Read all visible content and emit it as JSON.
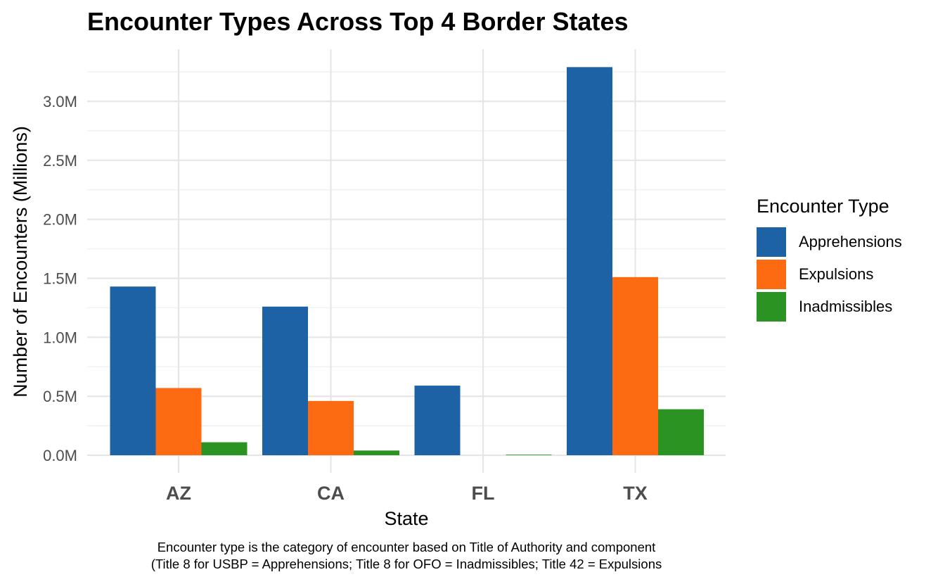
{
  "chart_data": {
    "type": "bar",
    "title": "Encounter Types Across Top 4 Border States",
    "xlabel": "State",
    "ylabel": "Number of Encounters (Millions)",
    "categories": [
      "AZ",
      "CA",
      "FL",
      "TX"
    ],
    "ylim": [
      0,
      3.3
    ],
    "yticks": [
      0.0,
      0.5,
      1.0,
      1.5,
      2.0,
      2.5,
      3.0
    ],
    "ytick_labels": [
      "0.0M",
      "0.5M",
      "1.0M",
      "1.5M",
      "2.0M",
      "2.5M",
      "3.0M"
    ],
    "grid": true,
    "legend": {
      "title": "Encounter Type",
      "position": "right"
    },
    "series": [
      {
        "name": "Apprehensions",
        "color": "#1c62a5",
        "values": [
          1.43,
          1.26,
          0.59,
          3.29
        ]
      },
      {
        "name": "Expulsions",
        "color": "#fc6b12",
        "values": [
          0.57,
          0.46,
          0.0,
          1.51
        ]
      },
      {
        "name": "Inadmissibles",
        "color": "#2a9322",
        "values": [
          0.11,
          0.04,
          0.005,
          0.39
        ]
      }
    ],
    "caption": [
      "Encounter type is the category of encounter based on Title of Authority and component",
      "(Title 8 for USBP = Apprehensions; Title 8 for OFO = Inadmissibles; Title 42 = Expulsions"
    ]
  }
}
